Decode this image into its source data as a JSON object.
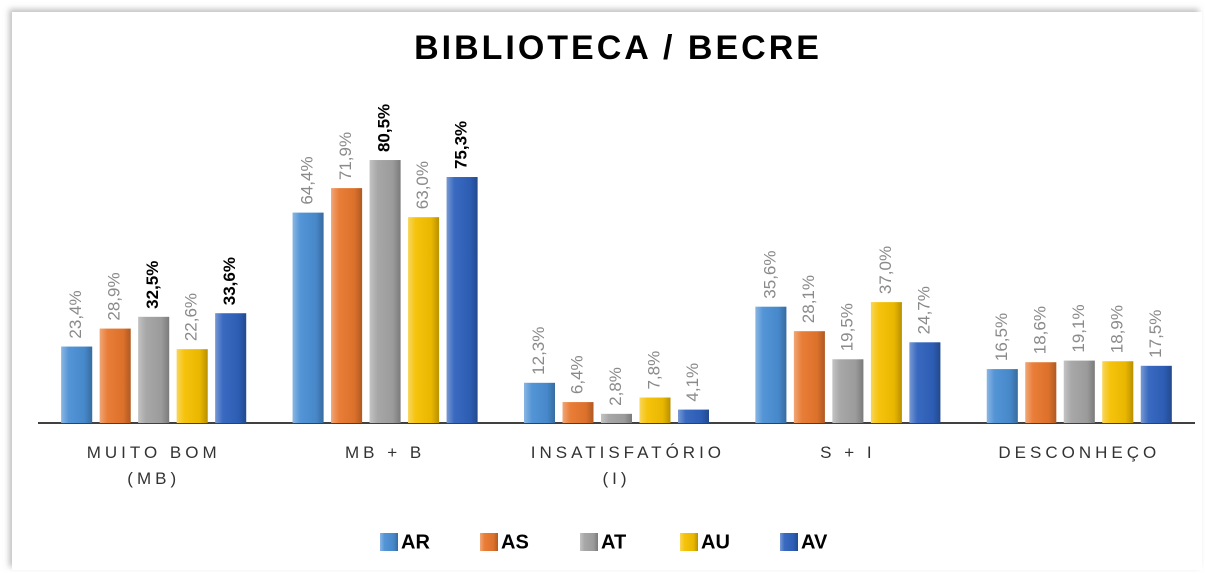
{
  "chart_data": {
    "type": "bar",
    "title": "BIBLIOTECA / BECRE",
    "categories": [
      "MUITO BOM (MB)",
      "MB + B",
      "INSATISFATÓRIO (I)",
      "S + I",
      "DESCONHEÇO"
    ],
    "series": [
      {
        "name": "AR",
        "color": "#4a8fd4",
        "values": [
          23.4,
          64.4,
          12.3,
          35.6,
          16.5
        ],
        "value_labels": [
          "23,4%",
          "64,4%",
          "12,3%",
          "35,6%",
          "16,5%"
        ],
        "value_label_bold": [
          false,
          false,
          false,
          false,
          false
        ]
      },
      {
        "name": "AS",
        "color": "#e8772e",
        "values": [
          28.9,
          71.9,
          6.4,
          28.1,
          18.6
        ],
        "value_labels": [
          "28,9%",
          "71,9%",
          "6,4%",
          "28,1%",
          "18,6%"
        ],
        "value_label_bold": [
          false,
          false,
          false,
          false,
          false
        ]
      },
      {
        "name": "AT",
        "color": "#a3a3a3",
        "values": [
          32.5,
          80.5,
          2.8,
          19.5,
          19.1
        ],
        "value_labels": [
          "32,5%",
          "80,5%",
          "2,8%",
          "19,5%",
          "19,1%"
        ],
        "value_label_bold": [
          true,
          true,
          false,
          false,
          false
        ]
      },
      {
        "name": "AU",
        "color": "#f5c000",
        "values": [
          22.6,
          63.0,
          7.8,
          37.0,
          18.9
        ],
        "value_labels": [
          "22,6%",
          "63,0%",
          "7,8%",
          "37,0%",
          "18,9%"
        ],
        "value_label_bold": [
          false,
          false,
          false,
          false,
          false
        ]
      },
      {
        "name": "AV",
        "color": "#2f62bd",
        "values": [
          33.6,
          75.3,
          4.1,
          24.7,
          17.5
        ],
        "value_labels": [
          "33,6%",
          "75,3%",
          "4,1%",
          "24,7%",
          "17,5%"
        ],
        "value_label_bold": [
          true,
          true,
          false,
          false,
          false
        ]
      }
    ],
    "ylim": [
      0,
      90
    ],
    "legend": "bottom"
  }
}
